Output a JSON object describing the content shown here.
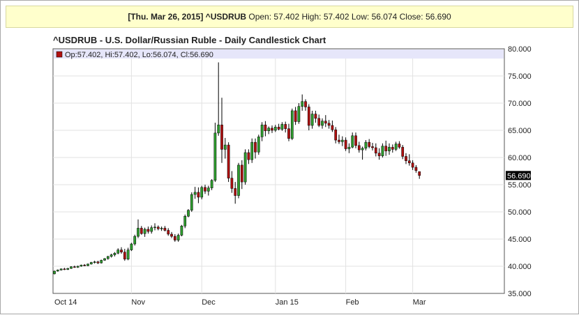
{
  "info_bar": {
    "date_symbol": "[Thu. Mar 26, 2015] ^USDRUB",
    "open_label": "Open:",
    "open": "57.402",
    "high_label": "High:",
    "high": "57.402",
    "low_label": "Low:",
    "low": "56.074",
    "close_label": "Close:",
    "close": "56.690"
  },
  "chart_data": {
    "type": "candlestick",
    "title": "^USDRUB - U.S. Dollar/Russian Ruble - Daily Candlestick Chart",
    "legend_text": "Op:57.402, Hi:57.402, Lo:56.074, Cl:56.690",
    "last_price_label": "56.690",
    "last_price": 56.69,
    "ylim": [
      35,
      80
    ],
    "y_ticks": [
      "35.000",
      "40.000",
      "45.000",
      "50.000",
      "55.000",
      "60.000",
      "65.000",
      "70.000",
      "75.000",
      "80.000"
    ],
    "x_ticks": [
      "Oct 14",
      "Nov",
      "Dec",
      "Jan 15",
      "Feb",
      "Mar"
    ],
    "x_tick_index": [
      0,
      23,
      44,
      66,
      87,
      107
    ],
    "grid": true,
    "colors": {
      "up": "#2e9e2e",
      "down": "#b01010",
      "wick": "#000000",
      "legend_band": "#e6e6fa"
    },
    "candles": [
      [
        38.6,
        39.2,
        38.5,
        39.1
      ],
      [
        39.1,
        39.4,
        39.0,
        39.3
      ],
      [
        39.3,
        39.6,
        39.2,
        39.5
      ],
      [
        39.5,
        39.7,
        39.3,
        39.4
      ],
      [
        39.4,
        39.7,
        39.3,
        39.6
      ],
      [
        39.6,
        40.0,
        39.5,
        39.9
      ],
      [
        39.9,
        40.1,
        39.7,
        39.8
      ],
      [
        39.8,
        40.1,
        39.7,
        40.0
      ],
      [
        40.0,
        40.3,
        39.9,
        40.2
      ],
      [
        40.2,
        40.4,
        40.0,
        40.1
      ],
      [
        40.1,
        40.5,
        40.0,
        40.4
      ],
      [
        40.4,
        40.8,
        40.3,
        40.7
      ],
      [
        40.7,
        41.0,
        40.5,
        40.8
      ],
      [
        40.8,
        41.0,
        40.4,
        40.6
      ],
      [
        40.6,
        41.2,
        40.5,
        41.1
      ],
      [
        41.1,
        41.5,
        41.0,
        41.4
      ],
      [
        41.4,
        41.9,
        41.2,
        41.8
      ],
      [
        41.8,
        42.3,
        41.6,
        42.1
      ],
      [
        42.1,
        42.6,
        41.8,
        42.4
      ],
      [
        42.4,
        43.3,
        42.2,
        43.0
      ],
      [
        43.0,
        43.5,
        42.3,
        42.6
      ],
      [
        42.6,
        43.2,
        41.0,
        41.3
      ],
      [
        41.3,
        43.4,
        41.1,
        43.0
      ],
      [
        43.0,
        44.3,
        42.8,
        44.1
      ],
      [
        44.1,
        45.8,
        43.8,
        45.5
      ],
      [
        45.5,
        48.6,
        45.2,
        47.0
      ],
      [
        47.0,
        47.4,
        45.8,
        46.0
      ],
      [
        46.0,
        47.1,
        45.4,
        46.8
      ],
      [
        46.8,
        47.3,
        46.0,
        46.4
      ],
      [
        46.4,
        47.5,
        46.0,
        47.1
      ],
      [
        47.1,
        47.9,
        46.6,
        47.2
      ],
      [
        47.2,
        47.5,
        46.6,
        46.9
      ],
      [
        46.9,
        47.3,
        46.5,
        47.0
      ],
      [
        47.0,
        47.4,
        46.4,
        46.6
      ],
      [
        46.6,
        47.0,
        45.6,
        45.9
      ],
      [
        45.9,
        46.3,
        45.2,
        45.5
      ],
      [
        45.5,
        45.9,
        44.5,
        44.8
      ],
      [
        44.8,
        46.0,
        44.5,
        45.7
      ],
      [
        45.7,
        47.6,
        45.5,
        47.4
      ],
      [
        47.4,
        49.5,
        47.0,
        49.2
      ],
      [
        49.2,
        50.5,
        49.0,
        50.3
      ],
      [
        50.3,
        53.6,
        50.0,
        53.2
      ],
      [
        53.2,
        54.6,
        52.4,
        53.6
      ],
      [
        53.6,
        54.5,
        51.6,
        52.7
      ],
      [
        52.7,
        54.8,
        52.3,
        54.5
      ],
      [
        54.5,
        55.0,
        53.3,
        53.8
      ],
      [
        53.8,
        54.8,
        53.0,
        54.4
      ],
      [
        54.4,
        56.0,
        54.0,
        55.8
      ],
      [
        55.8,
        66.4,
        55.5,
        64.5
      ],
      [
        64.5,
        77.5,
        64.0,
        66.0
      ],
      [
        66.0,
        71.0,
        59.0,
        61.5
      ],
      [
        61.5,
        63.6,
        59.8,
        62.3
      ],
      [
        62.3,
        62.8,
        55.5,
        56.2
      ],
      [
        56.2,
        57.5,
        53.5,
        54.3
      ],
      [
        54.3,
        55.5,
        51.5,
        53.0
      ],
      [
        53.0,
        59.0,
        52.5,
        58.6
      ],
      [
        58.6,
        59.5,
        54.2,
        55.5
      ],
      [
        55.5,
        61.5,
        55.0,
        60.9
      ],
      [
        60.9,
        61.5,
        58.8,
        59.6
      ],
      [
        59.6,
        63.5,
        59.0,
        62.8
      ],
      [
        62.8,
        63.5,
        59.8,
        61.0
      ],
      [
        61.0,
        64.2,
        60.5,
        63.8
      ],
      [
        63.8,
        66.5,
        63.0,
        66.0
      ],
      [
        66.0,
        66.7,
        63.9,
        64.9
      ],
      [
        64.9,
        65.7,
        64.3,
        65.4
      ],
      [
        65.4,
        65.9,
        64.5,
        65.0
      ],
      [
        65.0,
        66.0,
        64.7,
        65.6
      ],
      [
        65.6,
        66.2,
        65.0,
        65.2
      ],
      [
        65.2,
        66.5,
        64.9,
        66.1
      ],
      [
        66.1,
        66.6,
        64.6,
        65.3
      ],
      [
        65.3,
        66.2,
        63.0,
        63.5
      ],
      [
        63.5,
        69.0,
        63.2,
        68.6
      ],
      [
        68.6,
        69.3,
        66.0,
        66.6
      ],
      [
        66.6,
        70.0,
        66.2,
        69.4
      ],
      [
        69.4,
        71.6,
        68.6,
        70.3
      ],
      [
        70.3,
        70.7,
        68.6,
        69.3
      ],
      [
        69.3,
        69.8,
        65.0,
        65.9
      ],
      [
        65.9,
        68.6,
        65.3,
        68.0
      ],
      [
        68.0,
        68.6,
        66.4,
        67.2
      ],
      [
        67.2,
        67.9,
        65.6,
        65.9
      ],
      [
        65.9,
        67.2,
        65.3,
        66.7
      ],
      [
        66.7,
        67.8,
        65.6,
        66.3
      ],
      [
        66.3,
        66.9,
        65.3,
        65.9
      ],
      [
        65.9,
        66.8,
        64.7,
        65.1
      ],
      [
        65.1,
        65.6,
        62.6,
        63.2
      ],
      [
        63.2,
        64.2,
        62.5,
        62.9
      ],
      [
        62.9,
        63.9,
        62.1,
        63.2
      ],
      [
        63.2,
        63.7,
        61.2,
        61.6
      ],
      [
        61.6,
        62.6,
        60.8,
        61.9
      ],
      [
        61.9,
        64.6,
        61.7,
        64.0
      ],
      [
        64.0,
        64.6,
        61.7,
        62.2
      ],
      [
        62.2,
        62.9,
        60.9,
        61.4
      ],
      [
        61.4,
        62.0,
        59.6,
        61.7
      ],
      [
        61.7,
        63.2,
        61.3,
        62.8
      ],
      [
        62.8,
        63.4,
        61.7,
        62.0
      ],
      [
        62.0,
        62.7,
        61.3,
        61.8
      ],
      [
        61.8,
        62.6,
        60.2,
        60.8
      ],
      [
        60.8,
        61.7,
        59.6,
        60.3
      ],
      [
        60.3,
        62.6,
        60.0,
        62.1
      ],
      [
        62.1,
        63.1,
        60.3,
        61.2
      ],
      [
        61.2,
        62.6,
        60.5,
        61.9
      ],
      [
        61.9,
        62.4,
        60.9,
        61.5
      ],
      [
        61.5,
        62.9,
        61.2,
        62.5
      ],
      [
        62.5,
        63.0,
        61.6,
        61.9
      ],
      [
        61.9,
        62.3,
        59.7,
        60.2
      ],
      [
        60.2,
        60.8,
        58.8,
        59.4
      ],
      [
        59.4,
        60.6,
        58.5,
        59.0
      ],
      [
        59.0,
        59.5,
        57.7,
        58.2
      ],
      [
        58.2,
        58.6,
        57.2,
        57.6
      ],
      [
        57.402,
        57.402,
        56.074,
        56.69
      ]
    ]
  }
}
